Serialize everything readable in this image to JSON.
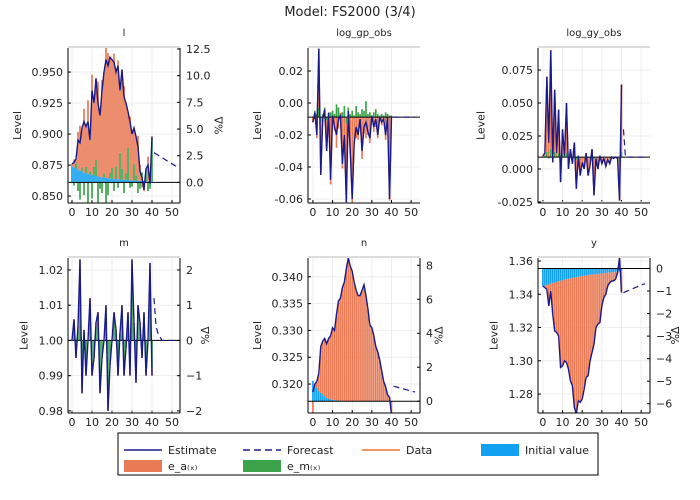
{
  "title": "Model: FS2000  (3/4)",
  "colors": {
    "estimate": "#1a1a8a",
    "forecast": "#1a1a8a",
    "data": "#f07030",
    "e_a": "#e87a55",
    "e_m": "#3da34a",
    "initial": "#12a0f0"
  },
  "legend": [
    {
      "label": "Estimate",
      "kind": "line",
      "color": "#1a1a8a"
    },
    {
      "label": "Forecast",
      "kind": "dash",
      "color": "#1a1a8a"
    },
    {
      "label": "Data",
      "kind": "line",
      "color": "#f07030"
    },
    {
      "label": "Initial value",
      "kind": "fill",
      "color": "#12a0f0"
    },
    {
      "label": "e_a₍ₓ₎",
      "kind": "fill",
      "color": "#e87a55"
    },
    {
      "label": "e_m₍ₓ₎",
      "kind": "fill",
      "color": "#3da34a"
    }
  ],
  "chart_data": [
    {
      "type": "bar+line",
      "title": "l",
      "ylabel": "Level",
      "right_label": "%Δ",
      "pct": true,
      "steady_state": 0.861,
      "xlim": [
        -2,
        54
      ],
      "xticks": [
        0,
        10,
        20,
        30,
        40,
        50
      ],
      "ylim": [
        0.8444,
        0.9694
      ],
      "yticks": [
        0.85,
        0.875,
        0.9,
        0.925,
        0.95
      ],
      "ytick_labels": [
        "0.850",
        "0.875",
        "0.900",
        "0.925",
        "0.950"
      ],
      "rticks": [
        0,
        2.5,
        5,
        7.5,
        10,
        12.5
      ],
      "rtick_labels": [
        "0.0",
        "2.5",
        "5.0",
        "7.5",
        "10.0",
        "12.5"
      ],
      "estimate": [
        0.876,
        0.877,
        0.88,
        0.895,
        0.893,
        0.905,
        0.91,
        0.906,
        0.91,
        0.895,
        0.935,
        0.925,
        0.945,
        0.925,
        0.915,
        0.935,
        0.95,
        0.96,
        0.955,
        0.962,
        0.96,
        0.958,
        0.95,
        0.955,
        0.935,
        0.952,
        0.93,
        0.925,
        0.918,
        0.91,
        0.9,
        0.905,
        0.898,
        0.89,
        0.87,
        0.865,
        0.855,
        0.872,
        0.875,
        0.86,
        0.898
      ],
      "forecast": [
        0.885,
        0.884,
        0.883,
        0.882,
        0.881,
        0.88,
        0.879,
        0.878,
        0.877,
        0.876,
        0.875,
        0.874
      ],
      "e_m": [
        0,
        -0.3,
        0.5,
        -0.8,
        -1.6,
        0.4,
        -1.2,
        0.6,
        -2,
        0.3,
        -1.5,
        0.8,
        1.5,
        -2,
        -0.6,
        -1,
        0.4,
        -2.5,
        -1.2,
        0.5,
        1,
        -0.8,
        1.2,
        -0.5,
        2.5,
        1,
        -1,
        0.6,
        3,
        -0.5,
        -0.4,
        1.5,
        0.5,
        -1,
        -0.6,
        0.8,
        -0.5,
        1,
        -0.8,
        -0.6,
        4
      ],
      "initial": [
        1.5,
        1.4,
        1.3,
        1.2,
        1.1,
        1.0,
        0.9,
        0.85,
        0.8,
        0.75,
        0.7,
        0.65,
        0.6,
        0.55,
        0.5,
        0.48,
        0.45,
        0.42,
        0.4,
        0.38,
        0.35,
        0.33,
        0.31,
        0.3,
        0.28,
        0.26,
        0.25,
        0.23,
        0.22,
        0.2,
        0.19,
        0.18,
        0.17,
        0.16,
        0.15,
        0.14,
        0.13,
        0.12,
        0.11,
        0.1,
        0.1
      ]
    },
    {
      "type": "bar+line",
      "title": "log_gp_obs",
      "ylabel": "Level",
      "right_label": "",
      "pct": false,
      "steady_state": -0.0088,
      "xlim": [
        -2.5,
        54.5
      ],
      "xticks": [
        0,
        10,
        20,
        30,
        40,
        50
      ],
      "ylim": [
        -0.0625,
        0.0344
      ],
      "yticks": [
        -0.06,
        -0.04,
        -0.02,
        0,
        0.02
      ],
      "ytick_labels": [
        "-0.06",
        "-0.04",
        "-0.02",
        "0.00",
        "0.02"
      ],
      "estimate": [
        -0.012,
        -0.006,
        -0.02,
        0.034,
        -0.045,
        -0.01,
        -0.004,
        -0.03,
        -0.006,
        -0.048,
        -0.008,
        -0.015,
        -0.02,
        -0.01,
        -0.008,
        -0.038,
        -0.02,
        -0.062,
        -0.005,
        -0.03,
        -0.06,
        -0.025,
        -0.015,
        -0.02,
        -0.01,
        -0.03,
        -0.015,
        -0.012,
        -0.018,
        -0.022,
        -0.008,
        -0.015,
        -0.01,
        -0.02,
        -0.009,
        -0.012,
        -0.01,
        -0.02,
        -0.009,
        -0.06,
        -0.008
      ],
      "data": [
        -0.012,
        -0.006,
        -0.02,
        0.034,
        -0.045,
        -0.01,
        -0.004,
        -0.03,
        -0.006,
        -0.048,
        -0.008,
        -0.015,
        -0.02,
        -0.01,
        -0.008,
        -0.038,
        -0.02,
        -0.062,
        -0.005,
        -0.03,
        -0.06,
        -0.025,
        -0.015,
        -0.02,
        -0.01,
        -0.03,
        -0.015,
        -0.012,
        -0.018,
        -0.022,
        -0.008,
        -0.015,
        -0.01,
        -0.02,
        -0.009,
        -0.012,
        -0.01,
        -0.02,
        -0.009,
        -0.06,
        -0.008
      ],
      "forecast": [
        -0.0088,
        -0.0088,
        -0.0088,
        -0.0088,
        -0.0088,
        -0.0088,
        -0.0088,
        -0.0088,
        -0.0088,
        -0.0088,
        -0.0088,
        -0.0088
      ],
      "e_m": [
        0,
        0.004,
        0.002,
        0.006,
        -0.003,
        0.002,
        0.006,
        -0.002,
        0.001,
        0.003,
        0.004,
        0.002,
        0.008,
        0.006,
        -0.002,
        0.003,
        0.007,
        -0.004,
        0.006,
        0.002,
        0.004,
        0.001,
        0.007,
        0.003,
        0.002,
        0.005,
        0.004,
        0.01,
        0.002,
        0.003,
        0.001,
        0.003,
        0.005,
        0.002,
        0.001,
        0.002,
        0.001,
        0.003,
        0.002,
        0.001,
        0
      ],
      "initial": []
    },
    {
      "type": "bar+line",
      "title": "log_gy_obs",
      "ylabel": "Level",
      "right_label": "",
      "pct": false,
      "steady_state": 0.009,
      "xlim": [
        -2.5,
        54.5
      ],
      "xticks": [
        0,
        10,
        20,
        30,
        40,
        50
      ],
      "ylim": [
        -0.0258,
        0.0917
      ],
      "yticks": [
        -0.025,
        0,
        0.025,
        0.05,
        0.075
      ],
      "ytick_labels": [
        "-0.025",
        "0.000",
        "0.025",
        "0.050",
        "0.075"
      ],
      "estimate": [
        0.01,
        0.012,
        0.07,
        0.02,
        0.09,
        0.005,
        0.06,
        0.012,
        0.045,
        -0.01,
        0.03,
        0.01,
        0.05,
        0.0,
        0.015,
        0.004,
        0.02,
        -0.015,
        0.01,
        -0.005,
        0.005,
        0.0,
        0.012,
        -0.005,
        0.003,
        0.015,
        -0.02,
        0.008,
        0.0,
        0.01,
        0.004,
        0.008,
        0.002,
        0.007,
        0.004,
        0.009,
        0.008,
        0.009,
        0.008,
        -0.024,
        0.064
      ],
      "data": [
        0.01,
        0.012,
        0.07,
        0.02,
        0.09,
        0.005,
        0.06,
        0.012,
        0.045,
        -0.01,
        0.03,
        0.01,
        0.05,
        0.0,
        0.015,
        0.004,
        0.02,
        -0.015,
        0.01,
        -0.005,
        0.005,
        0.0,
        0.012,
        -0.005,
        0.003,
        0.015,
        -0.02,
        0.008,
        0.0,
        0.01,
        0.004,
        0.008,
        0.002,
        0.007,
        0.004,
        0.009,
        0.008,
        0.009,
        0.008,
        -0.024,
        0.064
      ],
      "forecast": [
        0.03,
        0.009,
        0.009,
        0.009,
        0.009,
        0.009,
        0.009,
        0.009,
        0.009,
        0.009,
        0.009,
        0.009
      ],
      "e_m": [
        0,
        0.001,
        0.004,
        -0.001,
        0.006,
        -0.002,
        0.004,
        0.001,
        0.003,
        -0.002,
        0.002,
        0.001,
        0.003,
        -0.001,
        0.001,
        0,
        0.002,
        -0.002,
        0.001,
        -0.001,
        0,
        0,
        0.001,
        -0.001,
        0,
        0.001,
        -0.002,
        0,
        0,
        0.001,
        0,
        0,
        0,
        0,
        0,
        0,
        0,
        0,
        0,
        -0.003,
        0.004
      ],
      "initial": []
    },
    {
      "type": "bar+line",
      "title": "m",
      "ylabel": "Level",
      "right_label": "%Δ",
      "pct": true,
      "steady_state": 1.0,
      "xlim": [
        -2,
        54
      ],
      "xticks": [
        0,
        10,
        20,
        30,
        40,
        50
      ],
      "ylim": [
        0.9794,
        1.0234
      ],
      "yticks": [
        0.98,
        0.99,
        1.0,
        1.01,
        1.02
      ],
      "ytick_labels": [
        "0.98",
        "0.99",
        "1.00",
        "1.01",
        "1.02"
      ],
      "rticks": [
        -2,
        -1,
        0,
        1,
        2
      ],
      "rtick_labels": [
        "−2",
        "−1",
        "0",
        "1",
        "2"
      ],
      "estimate": [
        1.0,
        1.006,
        0.995,
        1.004,
        1.023,
        0.985,
        1.003,
        0.99,
        1.0,
        1.012,
        0.99,
        0.995,
        1.005,
        1.008,
        0.985,
        0.995,
        1.0,
        1.01,
        0.98,
        0.993,
        1.0,
        1.008,
        1.003,
        0.99,
        1.002,
        1.01,
        0.99,
        0.998,
        1.008,
        0.99,
        1.023,
        1.005,
        0.988,
        1.01,
        1.005,
        0.995,
        1.008,
        0.99,
        1.0,
        1.022,
        0.99
      ],
      "forecast": [
        1.012,
        1.004,
        1.002,
        1.001,
        1.0,
        1.0,
        1.0,
        1.0,
        1.0,
        1.0,
        1.0,
        1.0
      ],
      "e_m": [
        0,
        0.5,
        -0.4,
        0.3,
        1.9,
        -1.3,
        0.2,
        -0.8,
        0,
        1.0,
        -0.8,
        -0.4,
        0.4,
        0.7,
        -1.3,
        -0.4,
        0,
        0.8,
        -1.7,
        -0.6,
        0,
        0.7,
        0.2,
        -0.8,
        0.2,
        0.8,
        -0.8,
        -0.2,
        0.7,
        -0.8,
        1.9,
        0.4,
        -1.0,
        0.8,
        0.4,
        -0.4,
        0.7,
        -0.8,
        0,
        1.9,
        -0.8
      ],
      "initial": []
    },
    {
      "type": "bar+line",
      "title": "n",
      "ylabel": "Level",
      "right_label": "%Δ",
      "pct": true,
      "steady_state": 0.3168,
      "xlim": [
        -2.5,
        54.5
      ],
      "xticks": [
        0,
        10,
        20,
        30,
        40,
        50
      ],
      "ylim": [
        0.3146,
        0.3435
      ],
      "yticks": [
        0.32,
        0.325,
        0.33,
        0.335,
        0.34
      ],
      "ytick_labels": [
        "0.320",
        "0.325",
        "0.330",
        "0.335",
        "0.340"
      ],
      "rticks": [
        0,
        2,
        4,
        6,
        8
      ],
      "rtick_labels": [
        "0",
        "2",
        "4",
        "6",
        "8"
      ],
      "estimate": [
        0.3185,
        0.32,
        0.3205,
        0.322,
        0.327,
        0.328,
        0.3285,
        0.3275,
        0.3285,
        0.329,
        0.3305,
        0.33,
        0.333,
        0.3355,
        0.336,
        0.338,
        0.339,
        0.3415,
        0.3435,
        0.342,
        0.341,
        0.339,
        0.3375,
        0.3365,
        0.3365,
        0.3375,
        0.3385,
        0.3365,
        0.334,
        0.331,
        0.3305,
        0.329,
        0.327,
        0.326,
        0.3245,
        0.3225,
        0.3205,
        0.3195,
        0.318,
        0.3175,
        0.3142
      ],
      "forecast": [
        0.3196,
        0.3195,
        0.3194,
        0.3193,
        0.3192,
        0.3191,
        0.319,
        0.3189,
        0.3188,
        0.3187,
        0.3186,
        0.3185
      ],
      "e_m": [],
      "initial": [
        1.2,
        1.0,
        0.8,
        0.6,
        0.5,
        0.4,
        0.3,
        0.2,
        0.15,
        0.1,
        0.08,
        0.06,
        0.05,
        0.04,
        0.03,
        0.02,
        0.02,
        0.01,
        0.01,
        0.01,
        0,
        0,
        0,
        0,
        0,
        0,
        0,
        0,
        0,
        0,
        0,
        0,
        0,
        0,
        0,
        0,
        0,
        0,
        0,
        0,
        0
      ]
    },
    {
      "type": "bar+line",
      "title": "y",
      "ylabel": "Level",
      "right_label": "%Δ",
      "pct": true,
      "steady_state": 1.3555,
      "xlim": [
        -2.5,
        54.5
      ],
      "xticks": [
        0,
        10,
        20,
        30,
        40,
        50
      ],
      "ylim": [
        1.2686,
        1.3618
      ],
      "yticks": [
        1.28,
        1.3,
        1.32,
        1.34,
        1.36
      ],
      "ytick_labels": [
        "1.28",
        "1.30",
        "1.32",
        "1.34",
        "1.36"
      ],
      "rticks": [
        -6,
        -5,
        -4,
        -3,
        -2,
        -1,
        0
      ],
      "rtick_labels": [
        "−6",
        "−5",
        "−4",
        "−3",
        "−2",
        "−1",
        "0"
      ],
      "estimate": [
        1.345,
        1.344,
        1.343,
        1.333,
        1.342,
        1.328,
        1.318,
        1.317,
        1.315,
        1.296,
        1.297,
        1.3,
        1.299,
        1.295,
        1.288,
        1.285,
        1.272,
        1.268,
        1.276,
        1.275,
        1.277,
        1.283,
        1.29,
        1.291,
        1.3,
        1.305,
        1.31,
        1.32,
        1.322,
        1.323,
        1.333,
        1.338,
        1.34,
        1.345,
        1.347,
        1.348,
        1.348,
        1.349,
        1.353,
        1.362,
        1.341
      ],
      "forecast": [
        1.341,
        1.3415,
        1.342,
        1.3425,
        1.343,
        1.3435,
        1.344,
        1.3445,
        1.345,
        1.3455,
        1.346,
        1.3463
      ],
      "e_m": [],
      "initial": [
        -0.8,
        -0.77,
        -0.74,
        -0.71,
        -0.68,
        -0.65,
        -0.62,
        -0.6,
        -0.57,
        -0.55,
        -0.53,
        -0.5,
        -0.48,
        -0.46,
        -0.44,
        -0.42,
        -0.4,
        -0.39,
        -0.37,
        -0.35,
        -0.34,
        -0.32,
        -0.31,
        -0.3,
        -0.28,
        -0.27,
        -0.26,
        -0.25,
        -0.24,
        -0.23,
        -0.22,
        -0.21,
        -0.2,
        -0.19,
        -0.18,
        -0.17,
        -0.16,
        -0.15,
        -0.14,
        -0.13,
        -0.12
      ]
    }
  ]
}
